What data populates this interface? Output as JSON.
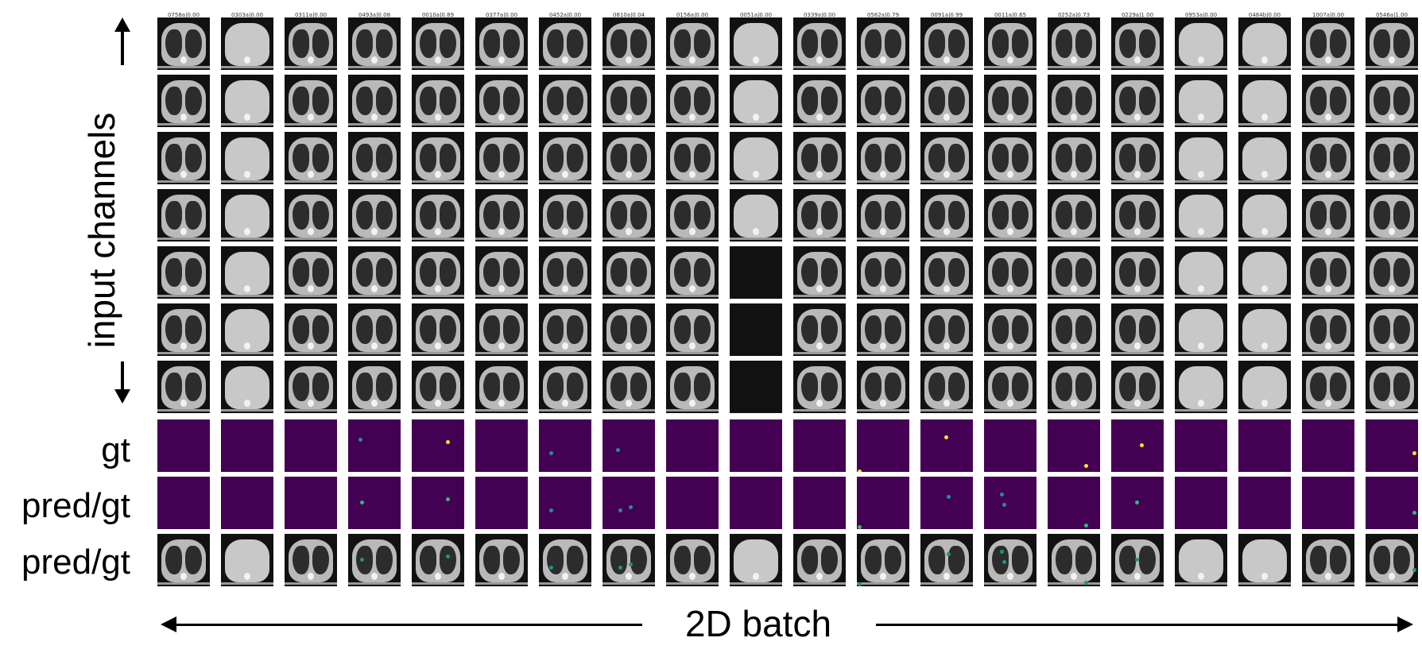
{
  "labels": {
    "input_channels": "input channels",
    "gt": "gt",
    "pred_gt_1": "pred/gt",
    "pred_gt_2": "pred/gt",
    "batch": "2D batch"
  },
  "colors": {
    "gt_background": "#440154",
    "mask_yellow": "#fde725",
    "mask_green": "#35b779"
  },
  "columns": [
    {
      "title": "0758a|0.00",
      "kind": "chest"
    },
    {
      "title": "0303a|0.00",
      "kind": "abd"
    },
    {
      "title": "0311a|0.00",
      "kind": "chest"
    },
    {
      "title": "0493a|0.08",
      "kind": "chest"
    },
    {
      "title": "0010a|0.89",
      "kind": "chest"
    },
    {
      "title": "0377a|0.00",
      "kind": "chest"
    },
    {
      "title": "0452a|0.00",
      "kind": "chest"
    },
    {
      "title": "0810a|0.04",
      "kind": "chest"
    },
    {
      "title": "0156a|0.00",
      "kind": "chest"
    },
    {
      "title": "0051a|0.00",
      "kind": "abd"
    },
    {
      "title": "0339a|0.00",
      "kind": "chest"
    },
    {
      "title": "0562a|0.79",
      "kind": "chest"
    },
    {
      "title": "0091a|0.99",
      "kind": "chest"
    },
    {
      "title": "0011a|0.65",
      "kind": "chest"
    },
    {
      "title": "0252a|0.73",
      "kind": "chest"
    },
    {
      "title": "0229a|1.00",
      "kind": "chest"
    },
    {
      "title": "0953a|0.00",
      "kind": "abd"
    },
    {
      "title": "0484b|0.00",
      "kind": "abd"
    },
    {
      "title": "1007a|0.00",
      "kind": "chest"
    },
    {
      "title": "0546a|1.00",
      "kind": "chest"
    }
  ],
  "blank_input_tiles": [
    [
      9,
      4
    ],
    [
      9,
      5
    ],
    [
      9,
      6
    ]
  ]
}
